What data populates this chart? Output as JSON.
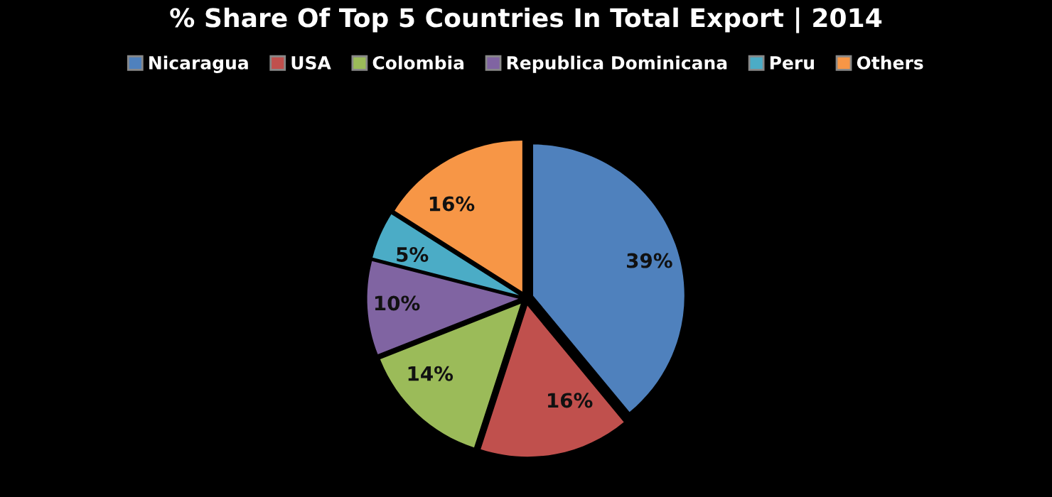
{
  "chart_data": {
    "type": "pie",
    "title": "% Share Of Top 5 Countries In Total Export | 2014",
    "categories": [
      "Nicaragua",
      "USA",
      "Colombia",
      "Republica Dominicana",
      "Peru",
      "Others"
    ],
    "values": [
      39,
      16,
      14,
      10,
      5,
      16
    ],
    "colors": [
      "#4f81bd",
      "#c0504d",
      "#9bbb59",
      "#8064a2",
      "#4bacc6",
      "#f79646"
    ],
    "value_labels": [
      "39%",
      "16%",
      "14%",
      "10%",
      "5%",
      "16%"
    ],
    "legend": "top"
  }
}
